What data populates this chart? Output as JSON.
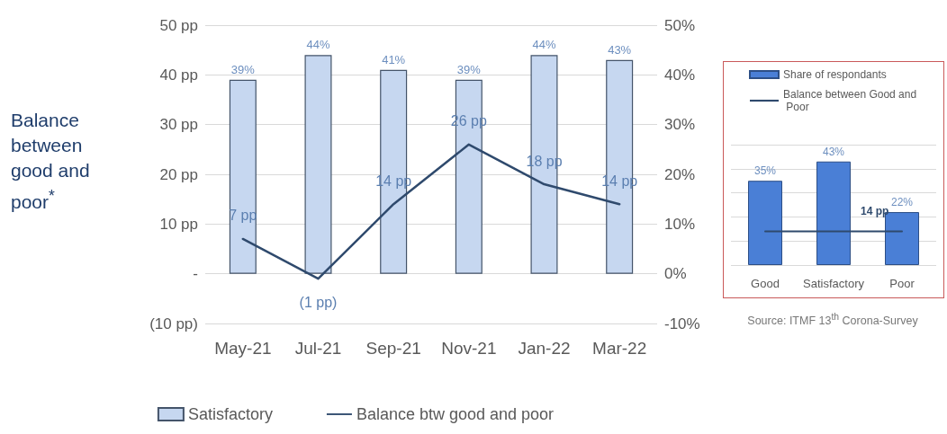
{
  "chart_data": [
    {
      "type": "bar",
      "ylabel": "Balance between good and poor$^{*}$",
      "categories": [
        "May-21",
        "Jul-21",
        "Sep-21",
        "Nov-21",
        "Jan-22",
        "Mar-22"
      ],
      "series": [
        {
          "name": "Satisfactory",
          "axis": "y2",
          "color": "#c6d7f0",
          "values": [
            39,
            44,
            41,
            39,
            44,
            43
          ],
          "value_labels": [
            "39%",
            "44%",
            "41%",
            "39%",
            "44%",
            "43%"
          ]
        },
        {
          "name": "Balance btw good and poor",
          "type": "line",
          "color": "#2f4a6d",
          "values": [
            7,
            -1,
            14,
            26,
            18,
            14
          ],
          "value_labels": [
            "7 pp",
            "(1 pp)",
            "14 pp",
            "26 pp",
            "18 pp",
            "14 pp"
          ]
        }
      ],
      "ylim": [
        -10,
        50
      ],
      "yticks": [
        {
          "value": -10,
          "label": "(10 pp)"
        },
        {
          "value": 0,
          "label": "-"
        },
        {
          "value": 10,
          "label": "10 pp"
        },
        {
          "value": 20,
          "label": "20 pp"
        },
        {
          "value": 30,
          "label": "30 pp"
        },
        {
          "value": 40,
          "label": "40 pp"
        },
        {
          "value": 50,
          "label": "50 pp"
        }
      ],
      "y2lim": [
        -10,
        50
      ],
      "y2ticks": [
        {
          "value": -10,
          "label": "-10%"
        },
        {
          "value": 0,
          "label": "0%"
        },
        {
          "value": 10,
          "label": "10%"
        },
        {
          "value": 20,
          "label": "20%"
        },
        {
          "value": 30,
          "label": "30%"
        },
        {
          "value": 40,
          "label": "40%"
        },
        {
          "value": 50,
          "label": "50%"
        }
      ],
      "grid": "y",
      "legend": "bottom",
      "marker": "none",
      "line_style": "solid"
    },
    {
      "type": "bar",
      "categories": [
        "Good",
        "Satisfactory",
        "Poor"
      ],
      "series": [
        {
          "name": "Share of respondants",
          "color": "#4a7fd6",
          "values": [
            35,
            43,
            22
          ],
          "value_labels": [
            "35%",
            "43%",
            "22%"
          ]
        },
        {
          "name": "Balance between Good and Poor",
          "type": "line",
          "color": "#2f4a6d",
          "values": [
            14,
            14,
            14
          ],
          "value_labels": [
            null,
            null,
            "14 pp"
          ]
        }
      ],
      "ylim": [
        0,
        50
      ],
      "yticks": [
        {
          "value": 0,
          "label": null
        },
        {
          "value": 10,
          "label": null
        },
        {
          "value": 20,
          "label": null
        },
        {
          "value": 30,
          "label": null
        },
        {
          "value": 40,
          "label": null
        },
        {
          "value": 50,
          "label": null
        }
      ],
      "tick_labels": "x",
      "grid": "y",
      "legend": "top",
      "marker": "none",
      "line_style": "solid",
      "annotations": [
        "Source: ITMF 13$^{th}$ Corona-Survey"
      ]
    }
  ]
}
